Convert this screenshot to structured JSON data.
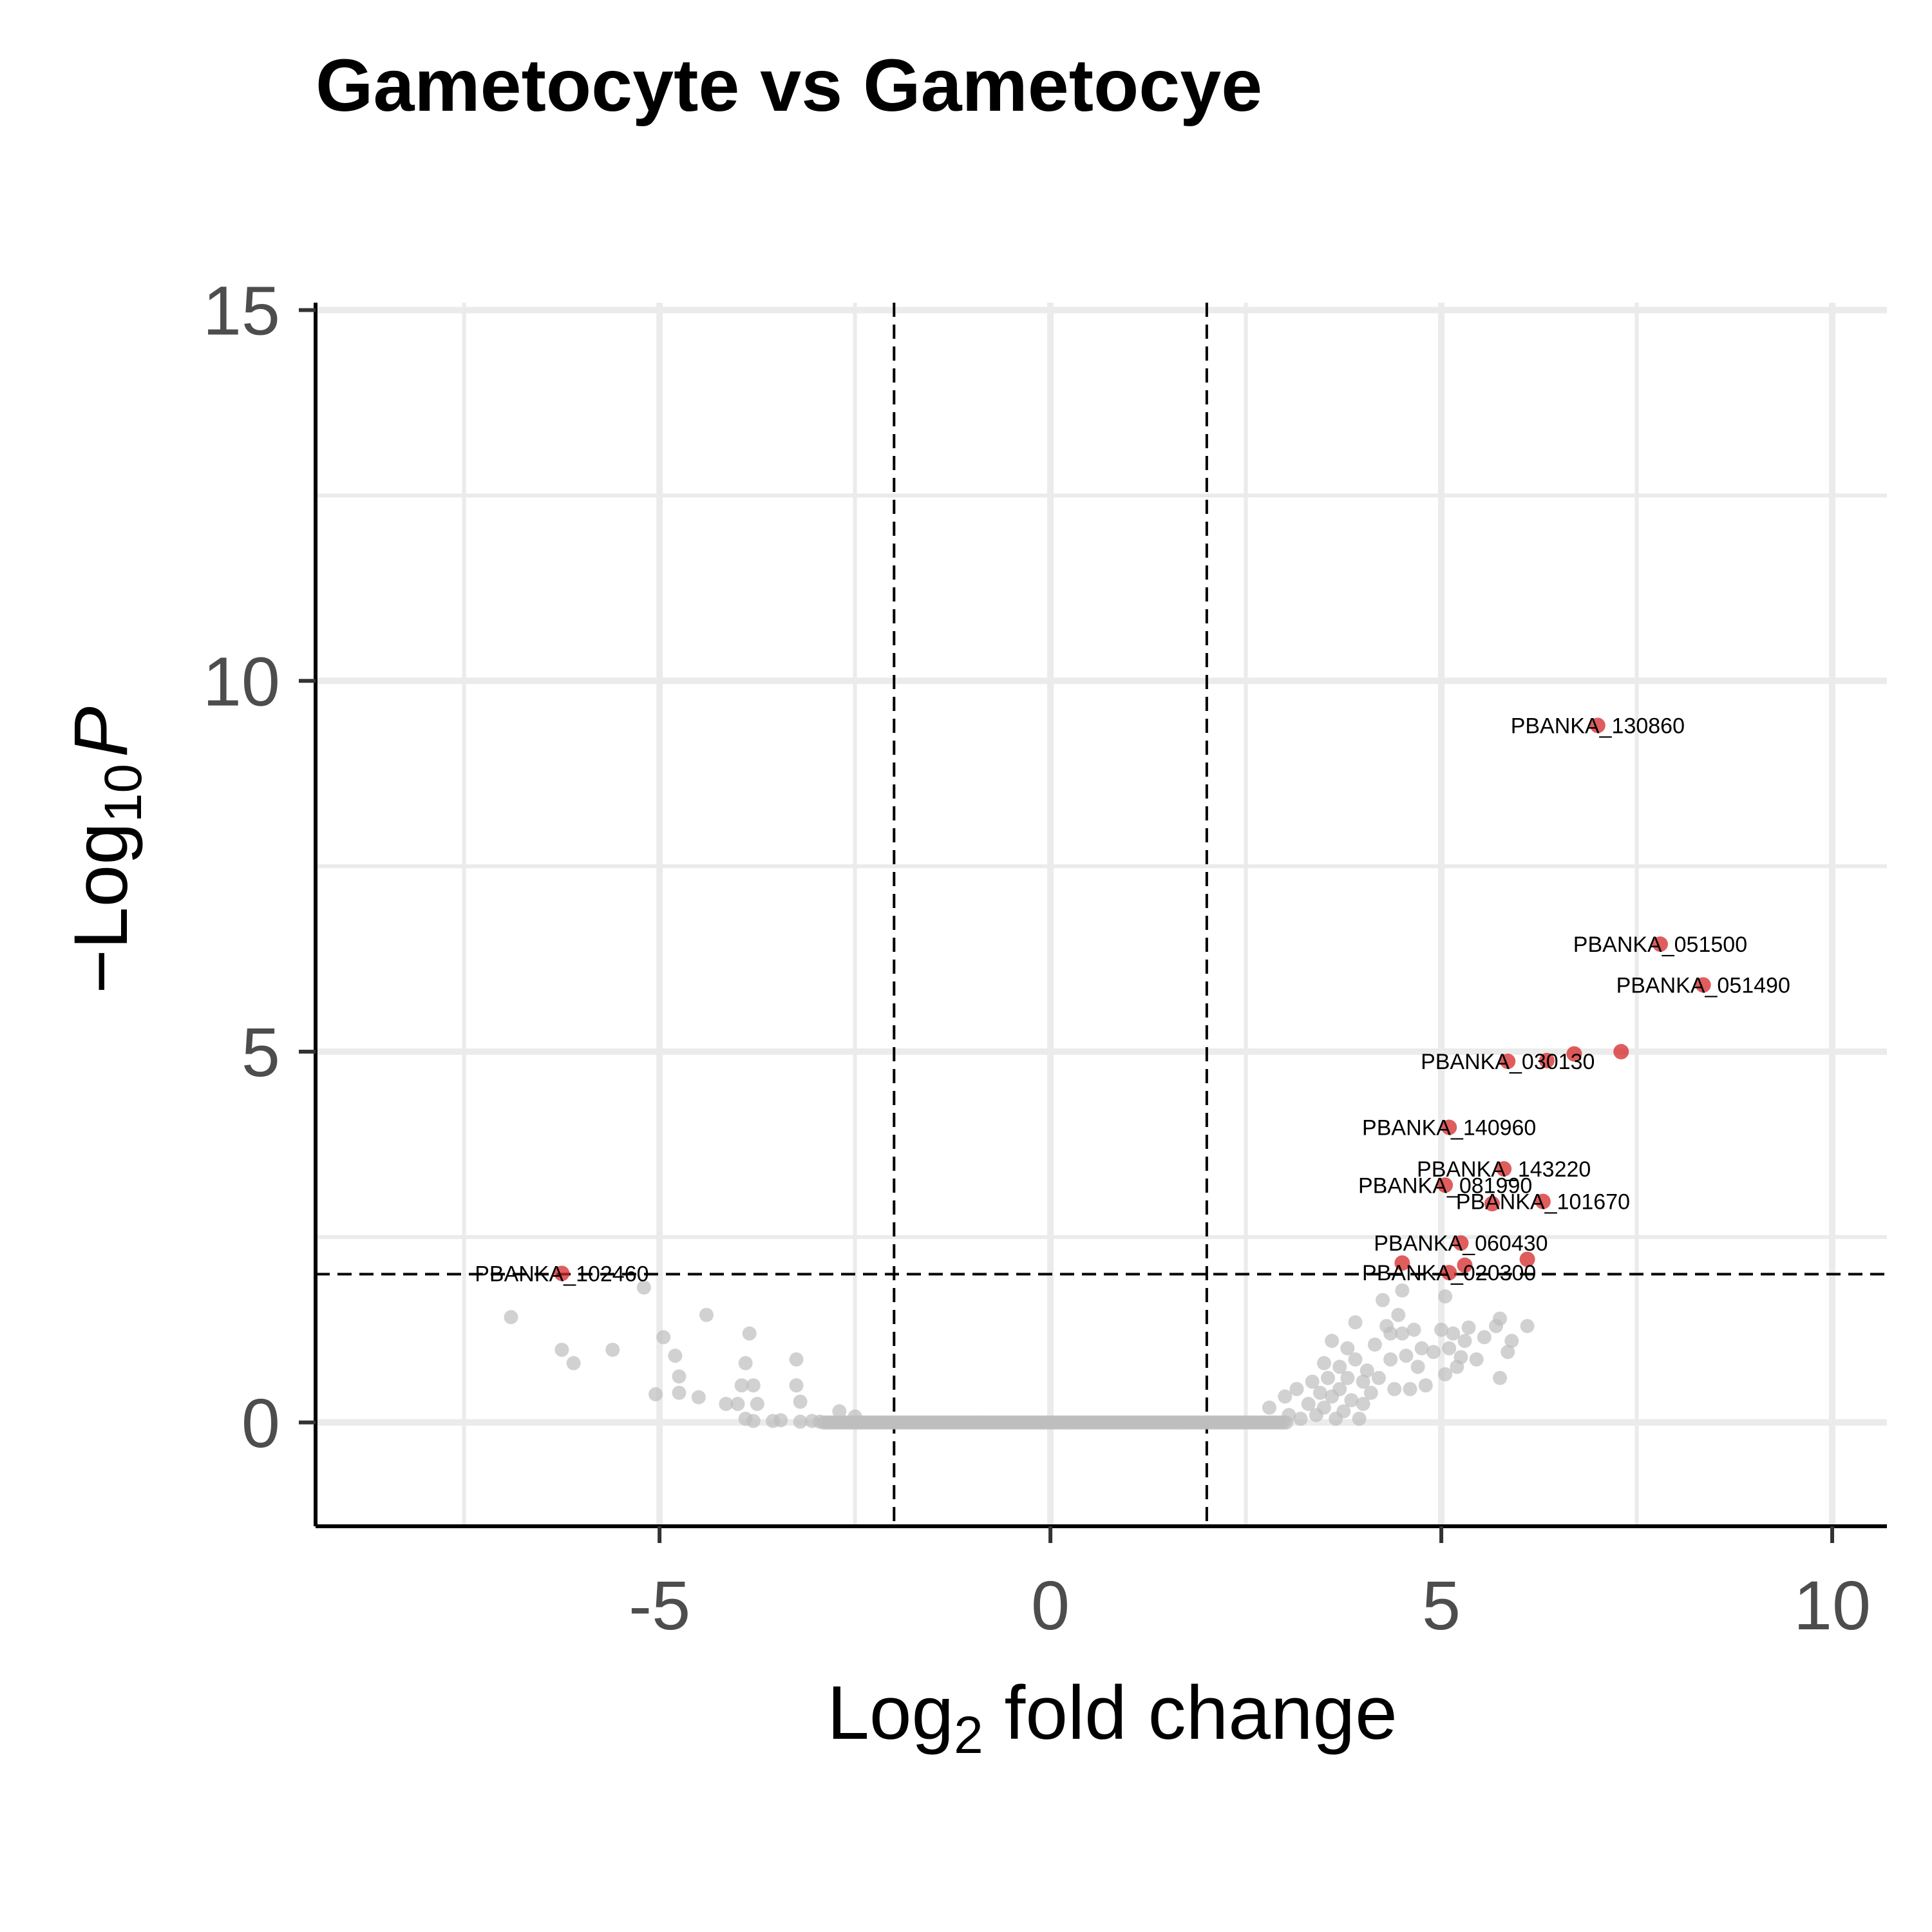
{
  "chart_data": {
    "type": "scatter",
    "title": "Gametocyte vs Gametocye",
    "xlabel": {
      "main": "Log",
      "sub": "2",
      "rest": " fold change"
    },
    "ylabel": {
      "prefix": "−Log",
      "sub": "10",
      "italic": "P"
    },
    "xlim": [
      -9.4,
      10.7
    ],
    "ylim": [
      -1.4,
      15.1
    ],
    "x_ticks": [
      -5,
      0,
      5,
      10
    ],
    "x_tick_labels": [
      "-5",
      "0",
      "5",
      "10"
    ],
    "y_ticks": [
      0,
      5,
      10,
      15
    ],
    "y_tick_labels": [
      "0",
      "5",
      "10",
      "15"
    ],
    "grid": true,
    "fold_change_cutoffs": [
      -2,
      2
    ],
    "pvalue_cutoff": 2,
    "colors": {
      "significant": "#d62728",
      "not_significant": "#bdbdbd",
      "grid": "#ebebeb"
    },
    "significant_points": [
      {
        "label": "PBANKA_130860",
        "x": 7.0,
        "y": 9.4
      },
      {
        "label": "PBANKA_051500",
        "x": 7.8,
        "y": 6.45
      },
      {
        "label": "PBANKA_051490",
        "x": 8.35,
        "y": 5.9
      },
      {
        "label": "",
        "x": 7.3,
        "y": 5.0
      },
      {
        "label": "",
        "x": 6.7,
        "y": 4.97
      },
      {
        "label": "",
        "x": 6.35,
        "y": 4.88
      },
      {
        "label": "PBANKA_030130",
        "x": 5.85,
        "y": 4.87
      },
      {
        "label": "PBANKA_140960",
        "x": 5.1,
        "y": 3.98
      },
      {
        "label": "PBANKA_143220",
        "x": 5.8,
        "y": 3.42
      },
      {
        "label": "PBANKA_081990",
        "x": 5.05,
        "y": 3.2
      },
      {
        "label": "PBANKA_101670",
        "x": 6.3,
        "y": 2.98
      },
      {
        "label": "",
        "x": 5.65,
        "y": 2.95
      },
      {
        "label": "PBANKA_060430",
        "x": 5.25,
        "y": 2.42
      },
      {
        "label": "",
        "x": 6.1,
        "y": 2.2
      },
      {
        "label": "",
        "x": 4.5,
        "y": 2.15
      },
      {
        "label": "",
        "x": 5.3,
        "y": 2.12
      },
      {
        "label": "PBANKA_020300",
        "x": 5.1,
        "y": 2.02
      },
      {
        "label": "PBANKA_102460",
        "x": -6.25,
        "y": 2.01
      }
    ],
    "nonsignificant_points": [
      [
        -6.9,
        1.42
      ],
      [
        -6.25,
        0.98
      ],
      [
        -6.1,
        0.8
      ],
      [
        -5.6,
        0.98
      ],
      [
        -5.2,
        1.82
      ],
      [
        -5.05,
        0.38
      ],
      [
        -4.95,
        1.15
      ],
      [
        -4.8,
        0.9
      ],
      [
        -4.75,
        0.62
      ],
      [
        -4.75,
        0.4
      ],
      [
        -4.5,
        0.34
      ],
      [
        -4.4,
        1.45
      ],
      [
        -4.15,
        0.25
      ],
      [
        -4.0,
        0.25
      ],
      [
        -3.95,
        0.5
      ],
      [
        -3.9,
        0.8
      ],
      [
        -3.85,
        1.2
      ],
      [
        -3.8,
        0.5
      ],
      [
        -3.75,
        0.25
      ],
      [
        -3.9,
        0.05
      ],
      [
        -3.8,
        0.02
      ],
      [
        -3.55,
        0.02
      ],
      [
        -3.45,
        0.03
      ],
      [
        -3.25,
        0.85
      ],
      [
        -3.25,
        0.5
      ],
      [
        -3.2,
        0.28
      ],
      [
        -3.2,
        0.01
      ],
      [
        -3.05,
        0.02
      ],
      [
        -2.95,
        0.01
      ],
      [
        -2.7,
        0.15
      ],
      [
        -2.5,
        0.08
      ],
      [
        2.8,
        0.2
      ],
      [
        3.0,
        0.35
      ],
      [
        3.05,
        0.1
      ],
      [
        3.15,
        0.45
      ],
      [
        3.2,
        0.05
      ],
      [
        3.3,
        0.25
      ],
      [
        3.35,
        0.55
      ],
      [
        3.4,
        0.1
      ],
      [
        3.45,
        0.4
      ],
      [
        3.5,
        0.8
      ],
      [
        3.5,
        0.2
      ],
      [
        3.55,
        0.6
      ],
      [
        3.6,
        1.1
      ],
      [
        3.6,
        0.35
      ],
      [
        3.65,
        0.05
      ],
      [
        3.7,
        0.75
      ],
      [
        3.7,
        0.45
      ],
      [
        3.75,
        0.15
      ],
      [
        3.8,
        1.0
      ],
      [
        3.8,
        0.6
      ],
      [
        3.85,
        0.3
      ],
      [
        3.9,
        1.35
      ],
      [
        3.9,
        0.85
      ],
      [
        3.95,
        0.05
      ],
      [
        4.0,
        0.55
      ],
      [
        4.0,
        0.25
      ],
      [
        4.05,
        0.7
      ],
      [
        4.1,
        0.4
      ],
      [
        4.15,
        1.05
      ],
      [
        4.2,
        0.6
      ],
      [
        4.25,
        1.65
      ],
      [
        4.3,
        1.3
      ],
      [
        4.35,
        0.85
      ],
      [
        4.35,
        1.2
      ],
      [
        4.4,
        0.45
      ],
      [
        4.45,
        1.45
      ],
      [
        4.5,
        1.2
      ],
      [
        4.55,
        0.9
      ],
      [
        4.6,
        0.45
      ],
      [
        4.65,
        1.25
      ],
      [
        4.7,
        0.75
      ],
      [
        4.75,
        1.0
      ],
      [
        4.8,
        0.5
      ],
      [
        4.9,
        0.95
      ],
      [
        5.0,
        1.25
      ],
      [
        5.05,
        0.65
      ],
      [
        5.1,
        1.0
      ],
      [
        5.15,
        1.2
      ],
      [
        5.2,
        0.75
      ],
      [
        5.25,
        0.88
      ],
      [
        5.3,
        1.1
      ],
      [
        5.35,
        1.28
      ],
      [
        5.45,
        0.85
      ],
      [
        5.55,
        1.15
      ],
      [
        5.7,
        1.3
      ],
      [
        5.75,
        1.4
      ],
      [
        5.75,
        0.6
      ],
      [
        5.85,
        0.95
      ],
      [
        5.9,
        1.1
      ],
      [
        6.1,
        1.3
      ],
      [
        4.5,
        1.78
      ],
      [
        5.05,
        1.7
      ]
    ]
  }
}
